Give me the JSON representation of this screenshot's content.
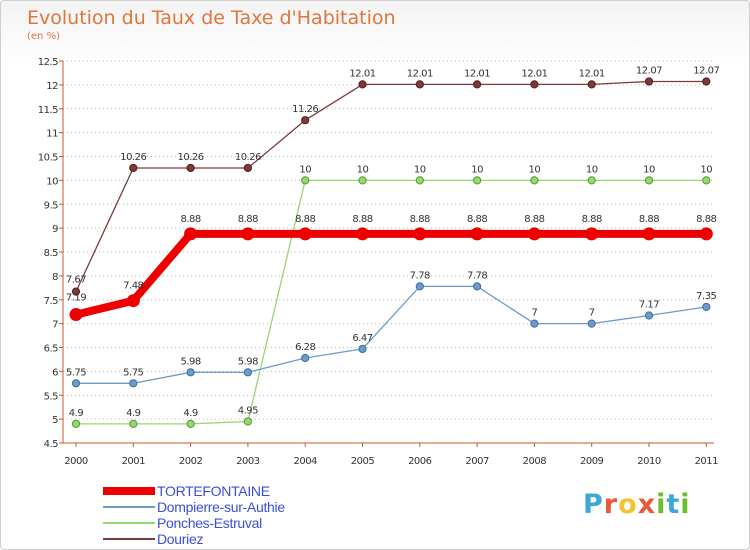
{
  "header": {
    "title": "Evolution du Taux de Taxe d'Habitation",
    "subtitle": "(en %)"
  },
  "logo": {
    "text": "Proxiti",
    "letters": [
      "P",
      "r",
      "o",
      "x",
      "i",
      "t",
      "i"
    ],
    "colors": [
      "#3fa7d6",
      "#e85a3a",
      "#f4c430",
      "#e85a3a",
      "#6cbf2c",
      "#3fa7d6",
      "#6cbf2c"
    ]
  },
  "chart_data": {
    "type": "line",
    "title": "Evolution du Taux de Taxe d'Habitation",
    "ylabel": "(en %)",
    "xlabel": "",
    "x": [
      "2000",
      "2001",
      "2002",
      "2003",
      "2004",
      "2005",
      "2006",
      "2007",
      "2008",
      "2009",
      "2010",
      "2011"
    ],
    "ylim": [
      4.5,
      12.5
    ],
    "yticks": [
      "4.5",
      "5",
      "5.5",
      "6",
      "6.5",
      "7",
      "7.5",
      "8",
      "8.5",
      "9",
      "9.5",
      "10",
      "10.5",
      "11",
      "11.5",
      "12",
      "12.5"
    ],
    "grid": "horizontal dotted",
    "legend_position": "bottom-left",
    "series": [
      {
        "name": "TORTEFONTAINE",
        "color": "#ee0000",
        "values": [
          7.19,
          7.48,
          8.88,
          8.88,
          8.88,
          8.88,
          8.88,
          8.88,
          8.88,
          8.88,
          8.88,
          8.88
        ],
        "labels": [
          "7.19",
          "7.48",
          "8.88",
          "8.88",
          "8.88",
          "8.88",
          "8.88",
          "8.88",
          "8.88",
          "8.88",
          "8.88",
          "8.88"
        ]
      },
      {
        "name": "Dompierre-sur-Authie",
        "color": "#6e9bc8",
        "values": [
          5.75,
          5.75,
          5.98,
          5.98,
          6.28,
          6.47,
          7.78,
          7.78,
          7,
          7,
          7.17,
          7.35
        ],
        "labels": [
          "5.75",
          "5.75",
          "5.98",
          "5.98",
          "6.28",
          "6.47",
          "7.78",
          "7.78",
          "7",
          "7",
          "7.17",
          "7.35"
        ]
      },
      {
        "name": "Ponches-Estruval",
        "color": "#98d66e",
        "values": [
          4.9,
          4.9,
          4.9,
          4.95,
          10,
          10,
          10,
          10,
          10,
          10,
          10,
          10
        ],
        "labels": [
          "4.9",
          "4.9",
          "4.9",
          "4.95",
          "10",
          "10",
          "10",
          "10",
          "10",
          "10",
          "10",
          "10"
        ]
      },
      {
        "name": "Douriez",
        "color": "#7a3b3b",
        "values": [
          7.67,
          10.26,
          10.26,
          10.26,
          11.26,
          12.01,
          12.01,
          12.01,
          12.01,
          12.01,
          12.07,
          12.07
        ],
        "labels": [
          "7.67",
          "10.26",
          "10.26",
          "10.26",
          "11.26",
          "12.01",
          "12.01",
          "12.01",
          "12.01",
          "12.01",
          "12.07",
          "12.07"
        ]
      }
    ]
  }
}
